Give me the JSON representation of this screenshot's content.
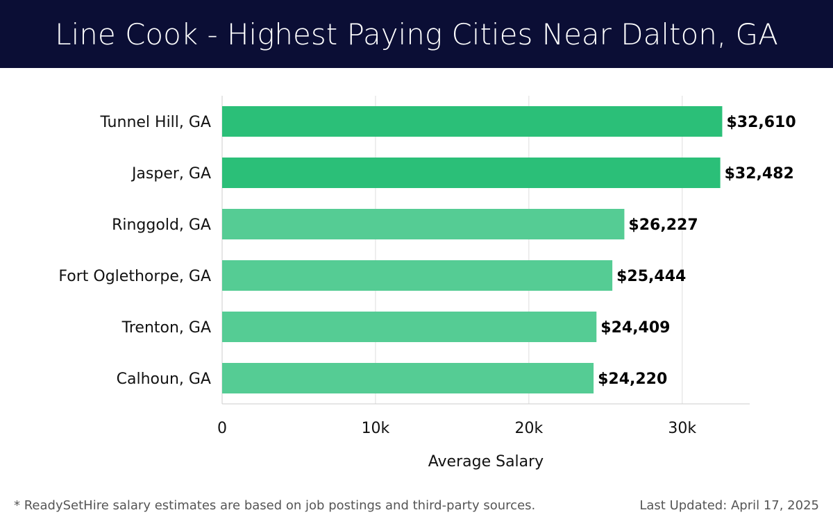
{
  "header": {
    "title": "Line Cook - Highest Paying Cities Near Dalton, GA"
  },
  "colors": {
    "header_bg": "#0b0e35",
    "bar_top": "#2bbf78",
    "bar_other": "#55cc94",
    "grid": "#dddddd",
    "axis_text": "#111111"
  },
  "chart_data": {
    "type": "bar",
    "orientation": "horizontal",
    "categories": [
      "Tunnel Hill, GA",
      "Jasper, GA",
      "Ringgold, GA",
      "Fort Oglethorpe, GA",
      "Trenton, GA",
      "Calhoun, GA"
    ],
    "values": [
      32610,
      32482,
      26227,
      25444,
      24409,
      24220
    ],
    "value_labels": [
      "$32,610",
      "$32,482",
      "$26,227",
      "$25,444",
      "$24,409",
      "$24,220"
    ],
    "xlabel": "Average Salary",
    "ylabel": "",
    "xlim": [
      0,
      34400
    ],
    "xticks": [
      0,
      10000,
      20000,
      30000
    ],
    "xtick_labels": [
      "0",
      "10k",
      "20k",
      "30k"
    ],
    "grid": true
  },
  "footer": {
    "note": "* ReadySetHire salary estimates are based on job postings and third-party sources.",
    "updated": "Last Updated: April 17, 2025"
  }
}
